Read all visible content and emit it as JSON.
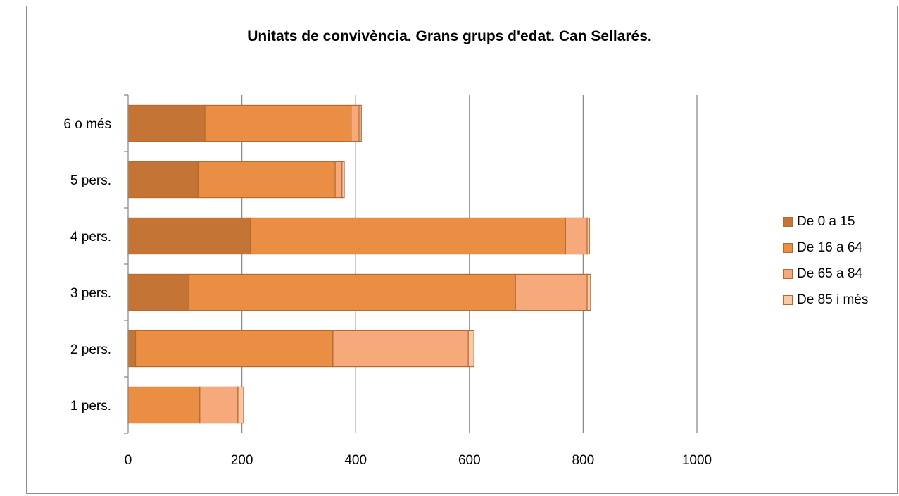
{
  "chart_data": {
    "type": "bar",
    "orientation": "horizontal",
    "stacked": true,
    "title": "Unitats de convivència. Grans grups d'edat. Can Sellarés.",
    "categories": [
      "1 pers.",
      "2 pers.",
      "3 pers.",
      "4 pers.",
      "5 pers.",
      "6 o més"
    ],
    "series": [
      {
        "name": "De 0 a 15",
        "color": "#c47434",
        "values": [
          0,
          13,
          107,
          215,
          123,
          135
        ]
      },
      {
        "name": "De 16 a 64",
        "color": "#e98e43",
        "values": [
          126,
          347,
          574,
          554,
          241,
          257
        ]
      },
      {
        "name": "De 65 a 84",
        "color": "#f6a97b",
        "values": [
          67,
          238,
          126,
          38,
          12,
          14
        ]
      },
      {
        "name": "De 85 i més",
        "color": "#fac8a4",
        "values": [
          10,
          10,
          6,
          4,
          4,
          4
        ]
      }
    ],
    "xlim": [
      0,
      1000
    ],
    "xticks": [
      0,
      200,
      400,
      600,
      800,
      1000
    ],
    "grid": "vertical",
    "legend_position": "right"
  }
}
